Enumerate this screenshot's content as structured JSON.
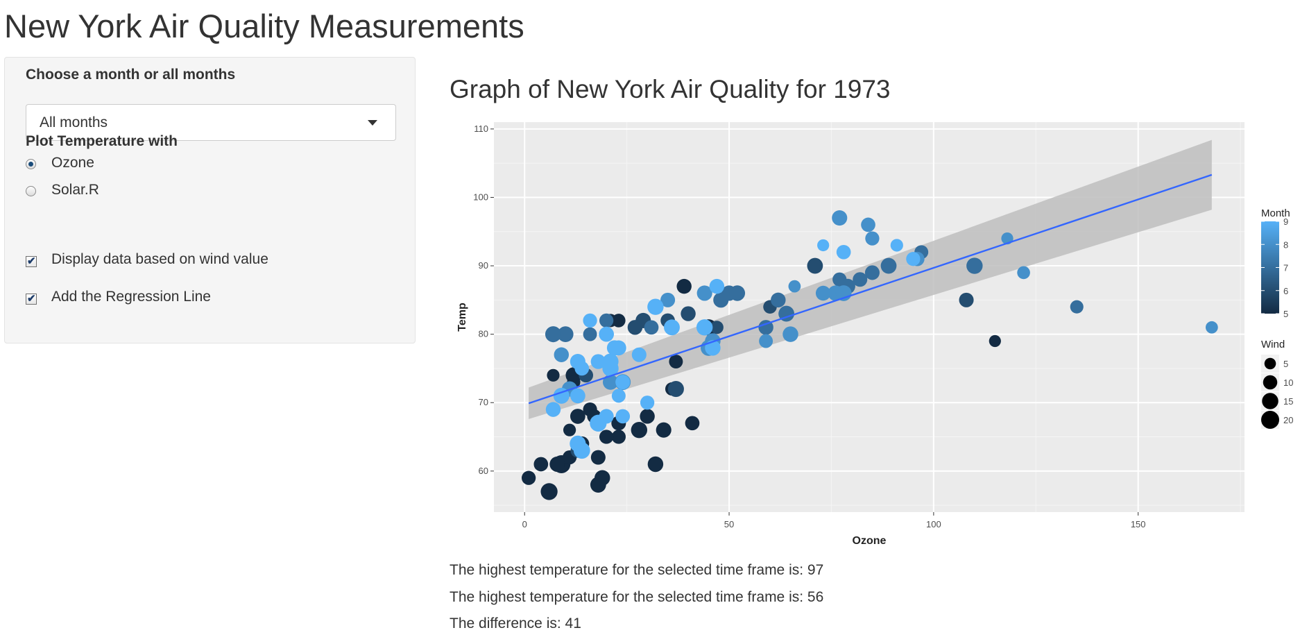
{
  "app": {
    "title": "New York Air Quality Measurements"
  },
  "sidebar": {
    "month_label": "Choose a month or all months",
    "month_selected": "All months",
    "plot_label": "Plot Temperature with",
    "radio_options": [
      {
        "label": "Ozone",
        "checked": true
      },
      {
        "label": "Solar.R",
        "checked": false
      }
    ],
    "checkboxes": [
      {
        "label": "Display data based on wind value",
        "checked": true
      },
      {
        "label": "Add the Regression Line",
        "checked": true
      }
    ],
    "check_glyph": "✔"
  },
  "main": {
    "plot_title": "Graph of New York Air Quality for 1973",
    "line_high": "The highest temperature for the selected time frame is: 97",
    "line_low": "The highest temperature for the selected time frame is: 56",
    "line_diff": "The difference is: 41"
  },
  "chart_data": {
    "type": "scatter",
    "xlabel": "Ozone",
    "ylabel": "Temp",
    "xlim": [
      -7.5,
      176
    ],
    "ylim": [
      54,
      111
    ],
    "x_ticks": [
      0,
      50,
      100,
      150
    ],
    "y_ticks": [
      60,
      70,
      80,
      90,
      100,
      110
    ],
    "grid": true,
    "background": "#ebebeb",
    "color_scale": [
      "#132b43",
      "#56b1f7"
    ],
    "regression": {
      "x": [
        1,
        168
      ],
      "y": [
        69.9,
        103.3
      ],
      "ci_lower": [
        67.6,
        98.2
      ],
      "ci_upper": [
        72.2,
        108.4
      ],
      "line_color": "#3366ff",
      "ribbon_color": "#bebebe"
    },
    "legends": [
      {
        "title": "Month",
        "type": "colorbar",
        "ticks": [
          5,
          6,
          7,
          8,
          9
        ],
        "placement": "right"
      },
      {
        "title": "Wind",
        "type": "size",
        "ticks": [
          5,
          10,
          15,
          20
        ],
        "placement": "right"
      }
    ],
    "points": [
      {
        "x": 1,
        "y": 59,
        "month": 5,
        "wind": 9.7
      },
      {
        "x": 4,
        "y": 61,
        "month": 5,
        "wind": 10.3
      },
      {
        "x": 6,
        "y": 57,
        "month": 5,
        "wind": 16.6
      },
      {
        "x": 7,
        "y": 74,
        "month": 5,
        "wind": 6.9
      },
      {
        "x": 8,
        "y": 61,
        "month": 5,
        "wind": 12.6
      },
      {
        "x": 9,
        "y": 61,
        "month": 5,
        "wind": 20.1
      },
      {
        "x": 11,
        "y": 66,
        "month": 5,
        "wind": 6.9
      },
      {
        "x": 11,
        "y": 62,
        "month": 5,
        "wind": 9.7
      },
      {
        "x": 12,
        "y": 74,
        "month": 5,
        "wind": 14.3
      },
      {
        "x": 13,
        "y": 68,
        "month": 5,
        "wind": 12.0
      },
      {
        "x": 14,
        "y": 64,
        "month": 5,
        "wind": 10.9
      },
      {
        "x": 16,
        "y": 69,
        "month": 5,
        "wind": 9.7
      },
      {
        "x": 18,
        "y": 58,
        "month": 5,
        "wind": 13.8
      },
      {
        "x": 18,
        "y": 62,
        "month": 5,
        "wind": 10.9
      },
      {
        "x": 19,
        "y": 59,
        "month": 5,
        "wind": 13.2
      },
      {
        "x": 21,
        "y": 82,
        "month": 5,
        "wind": 8.0
      },
      {
        "x": 23,
        "y": 67,
        "month": 5,
        "wind": 10.9
      },
      {
        "x": 23,
        "y": 65,
        "month": 5,
        "wind": 9.7
      },
      {
        "x": 23,
        "y": 82,
        "month": 5,
        "wind": 8.6
      },
      {
        "x": 28,
        "y": 66,
        "month": 5,
        "wind": 14.9
      },
      {
        "x": 30,
        "y": 68,
        "month": 5,
        "wind": 11.5
      },
      {
        "x": 32,
        "y": 61,
        "month": 5,
        "wind": 13.2
      },
      {
        "x": 34,
        "y": 66,
        "month": 5,
        "wind": 12.6
      },
      {
        "x": 36,
        "y": 72,
        "month": 5,
        "wind": 8.0
      },
      {
        "x": 37,
        "y": 76,
        "month": 5,
        "wind": 9.2
      },
      {
        "x": 39,
        "y": 87,
        "month": 5,
        "wind": 11.5
      },
      {
        "x": 41,
        "y": 67,
        "month": 5,
        "wind": 10.3
      },
      {
        "x": 45,
        "y": 81,
        "month": 5,
        "wind": 14.9
      },
      {
        "x": 115,
        "y": 79,
        "month": 5,
        "wind": 5.7
      },
      {
        "x": 12,
        "y": 73,
        "month": 5,
        "wind": 8.0
      },
      {
        "x": 8,
        "y": 61,
        "month": 5,
        "wind": 11.0
      },
      {
        "x": 17,
        "y": 68,
        "month": 5,
        "wind": 9.7
      },
      {
        "x": 20,
        "y": 65,
        "month": 5,
        "wind": 9.7
      },
      {
        "x": 13,
        "y": 63,
        "month": 6,
        "wind": 10.5
      },
      {
        "x": 21,
        "y": 75,
        "month": 6,
        "wind": 9.7
      },
      {
        "x": 29,
        "y": 82,
        "month": 6,
        "wind": 12.6
      },
      {
        "x": 37,
        "y": 72,
        "month": 6,
        "wind": 14.3
      },
      {
        "x": 40,
        "y": 83,
        "month": 6,
        "wind": 11.5
      },
      {
        "x": 60,
        "y": 84,
        "month": 6,
        "wind": 8.6
      },
      {
        "x": 71,
        "y": 90,
        "month": 6,
        "wind": 13.8
      },
      {
        "x": 15,
        "y": 74,
        "month": 6,
        "wind": 10.3
      },
      {
        "x": 108,
        "y": 85,
        "month": 6,
        "wind": 10.9
      },
      {
        "x": 35,
        "y": 82,
        "month": 6,
        "wind": 10.3
      },
      {
        "x": 27,
        "y": 81,
        "month": 6,
        "wind": 11.5
      },
      {
        "x": 47,
        "y": 81,
        "month": 6,
        "wind": 8.0
      },
      {
        "x": 48,
        "y": 85,
        "month": 7,
        "wind": 12.6
      },
      {
        "x": 50,
        "y": 86,
        "month": 7,
        "wind": 12.6
      },
      {
        "x": 52,
        "y": 86,
        "month": 7,
        "wind": 13.2
      },
      {
        "x": 59,
        "y": 81,
        "month": 7,
        "wind": 11.5
      },
      {
        "x": 62,
        "y": 85,
        "month": 7,
        "wind": 11.5
      },
      {
        "x": 64,
        "y": 83,
        "month": 7,
        "wind": 13.8
      },
      {
        "x": 77,
        "y": 88,
        "month": 7,
        "wind": 9.7
      },
      {
        "x": 82,
        "y": 88,
        "month": 7,
        "wind": 10.9
      },
      {
        "x": 85,
        "y": 89,
        "month": 7,
        "wind": 10.9
      },
      {
        "x": 89,
        "y": 90,
        "month": 7,
        "wind": 13.8
      },
      {
        "x": 97,
        "y": 92,
        "month": 7,
        "wind": 9.2
      },
      {
        "x": 110,
        "y": 90,
        "month": 7,
        "wind": 14.9
      },
      {
        "x": 135,
        "y": 84,
        "month": 7,
        "wind": 8.0
      },
      {
        "x": 79,
        "y": 87,
        "month": 7,
        "wind": 12.0
      },
      {
        "x": 10,
        "y": 80,
        "month": 7,
        "wind": 13.8
      },
      {
        "x": 16,
        "y": 80,
        "month": 7,
        "wind": 9.2
      },
      {
        "x": 31,
        "y": 81,
        "month": 7,
        "wind": 10.3
      },
      {
        "x": 20,
        "y": 82,
        "month": 7,
        "wind": 9.7
      },
      {
        "x": 7,
        "y": 80,
        "month": 7,
        "wind": 14.3
      },
      {
        "x": 11,
        "y": 72,
        "month": 8,
        "wind": 12.6
      },
      {
        "x": 21,
        "y": 73,
        "month": 8,
        "wind": 12.6
      },
      {
        "x": 24,
        "y": 73,
        "month": 8,
        "wind": 13.8
      },
      {
        "x": 44,
        "y": 86,
        "month": 8,
        "wind": 12.6
      },
      {
        "x": 35,
        "y": 85,
        "month": 8,
        "wind": 10.9
      },
      {
        "x": 65,
        "y": 80,
        "month": 8,
        "wind": 13.2
      },
      {
        "x": 77,
        "y": 97,
        "month": 8,
        "wind": 12.6
      },
      {
        "x": 84,
        "y": 96,
        "month": 8,
        "wind": 10.3
      },
      {
        "x": 85,
        "y": 94,
        "month": 8,
        "wind": 9.7
      },
      {
        "x": 66,
        "y": 87,
        "month": 8,
        "wind": 6.3
      },
      {
        "x": 59,
        "y": 79,
        "month": 8,
        "wind": 9.2
      },
      {
        "x": 96,
        "y": 91,
        "month": 8,
        "wind": 10.3
      },
      {
        "x": 118,
        "y": 94,
        "month": 8,
        "wind": 5.7
      },
      {
        "x": 122,
        "y": 89,
        "month": 8,
        "wind": 7.4
      },
      {
        "x": 168,
        "y": 81,
        "month": 8,
        "wind": 6.3
      },
      {
        "x": 73,
        "y": 86,
        "month": 8,
        "wind": 11.5
      },
      {
        "x": 76,
        "y": 86,
        "month": 8,
        "wind": 12.6
      },
      {
        "x": 9,
        "y": 77,
        "month": 8,
        "wind": 11.5
      },
      {
        "x": 46,
        "y": 79,
        "month": 8,
        "wind": 13.2
      },
      {
        "x": 28,
        "y": 77,
        "month": 8,
        "wind": 6.9
      },
      {
        "x": 45,
        "y": 78,
        "month": 8,
        "wind": 14.3
      },
      {
        "x": 78,
        "y": 86,
        "month": 8,
        "wind": 13.8
      },
      {
        "x": 73,
        "y": 93,
        "month": 9,
        "wind": 5.7
      },
      {
        "x": 91,
        "y": 93,
        "month": 9,
        "wind": 6.9
      },
      {
        "x": 47,
        "y": 87,
        "month": 9,
        "wind": 11.5
      },
      {
        "x": 32,
        "y": 84,
        "month": 9,
        "wind": 14.9
      },
      {
        "x": 20,
        "y": 80,
        "month": 9,
        "wind": 10.3
      },
      {
        "x": 23,
        "y": 78,
        "month": 9,
        "wind": 12.0
      },
      {
        "x": 21,
        "y": 75,
        "month": 9,
        "wind": 14.9
      },
      {
        "x": 24,
        "y": 73,
        "month": 9,
        "wind": 11.0
      },
      {
        "x": 44,
        "y": 81,
        "month": 9,
        "wind": 14.9
      },
      {
        "x": 21,
        "y": 76,
        "month": 9,
        "wind": 14.3
      },
      {
        "x": 28,
        "y": 77,
        "month": 9,
        "wind": 10.9
      },
      {
        "x": 9,
        "y": 71,
        "month": 9,
        "wind": 14.3
      },
      {
        "x": 13,
        "y": 71,
        "month": 9,
        "wind": 12.0
      },
      {
        "x": 46,
        "y": 78,
        "month": 9,
        "wind": 13.2
      },
      {
        "x": 18,
        "y": 67,
        "month": 9,
        "wind": 16.6
      },
      {
        "x": 13,
        "y": 76,
        "month": 9,
        "wind": 12.6
      },
      {
        "x": 24,
        "y": 68,
        "month": 9,
        "wind": 10.3
      },
      {
        "x": 16,
        "y": 82,
        "month": 9,
        "wind": 9.7
      },
      {
        "x": 13,
        "y": 64,
        "month": 9,
        "wind": 14.6
      },
      {
        "x": 23,
        "y": 71,
        "month": 9,
        "wind": 9.2
      },
      {
        "x": 36,
        "y": 81,
        "month": 9,
        "wind": 14.0
      },
      {
        "x": 7,
        "y": 69,
        "month": 9,
        "wind": 11.5
      },
      {
        "x": 14,
        "y": 63,
        "month": 9,
        "wind": 15.5
      },
      {
        "x": 30,
        "y": 70,
        "month": 9,
        "wind": 9.7
      },
      {
        "x": 14,
        "y": 75,
        "month": 9,
        "wind": 10.3
      },
      {
        "x": 18,
        "y": 76,
        "month": 9,
        "wind": 11.5
      },
      {
        "x": 20,
        "y": 68,
        "month": 9,
        "wind": 10.9
      },
      {
        "x": 20,
        "y": 80,
        "month": 9,
        "wind": 12.0
      },
      {
        "x": 95,
        "y": 91,
        "month": 9,
        "wind": 9.7
      },
      {
        "x": 78,
        "y": 92,
        "month": 9,
        "wind": 10.3
      },
      {
        "x": 22,
        "y": 78,
        "month": 9,
        "wind": 12.6
      },
      {
        "x": 47,
        "y": 87,
        "month": 9,
        "wind": 11.0
      }
    ]
  }
}
